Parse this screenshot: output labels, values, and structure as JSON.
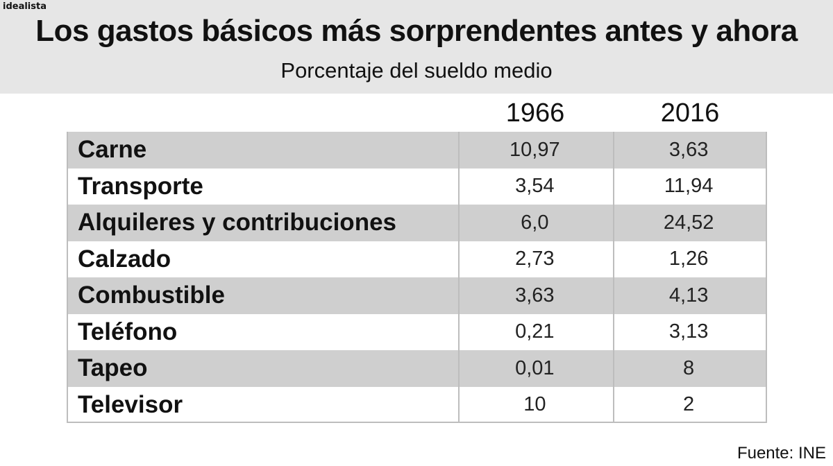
{
  "brand": "idealista",
  "title": "Los gastos básicos más sorprendentes antes y ahora",
  "subtitle": "Porcentaje del sueldo medio",
  "columns": [
    "1966",
    "2016"
  ],
  "source": "Fuente: INE",
  "colors": {
    "header_bg": "#e6e6e6",
    "row_shade": "#cfcfcf",
    "grid": "#bdbdbd"
  },
  "chart_data": {
    "type": "table",
    "title": "Los gastos básicos más sorprendentes antes y ahora",
    "subtitle": "Porcentaje del sueldo medio",
    "columns": [
      "1966",
      "2016"
    ],
    "rows": [
      {
        "label": "Carne",
        "values": [
          "10,97",
          "3,63"
        ]
      },
      {
        "label": "Transporte",
        "values": [
          "3,54",
          "11,94"
        ]
      },
      {
        "label": "Alquileres y contribuciones",
        "values": [
          "6,0",
          "24,52"
        ]
      },
      {
        "label": "Calzado",
        "values": [
          "2,73",
          "1,26"
        ]
      },
      {
        "label": "Combustible",
        "values": [
          "3,63",
          "4,13"
        ]
      },
      {
        "label": "Teléfono",
        "values": [
          "0,21",
          "3,13"
        ]
      },
      {
        "label": "Tapeo",
        "values": [
          "0,01",
          "8"
        ]
      },
      {
        "label": "Televisor",
        "values": [
          "10",
          "2"
        ]
      }
    ],
    "source": "Fuente: INE"
  }
}
